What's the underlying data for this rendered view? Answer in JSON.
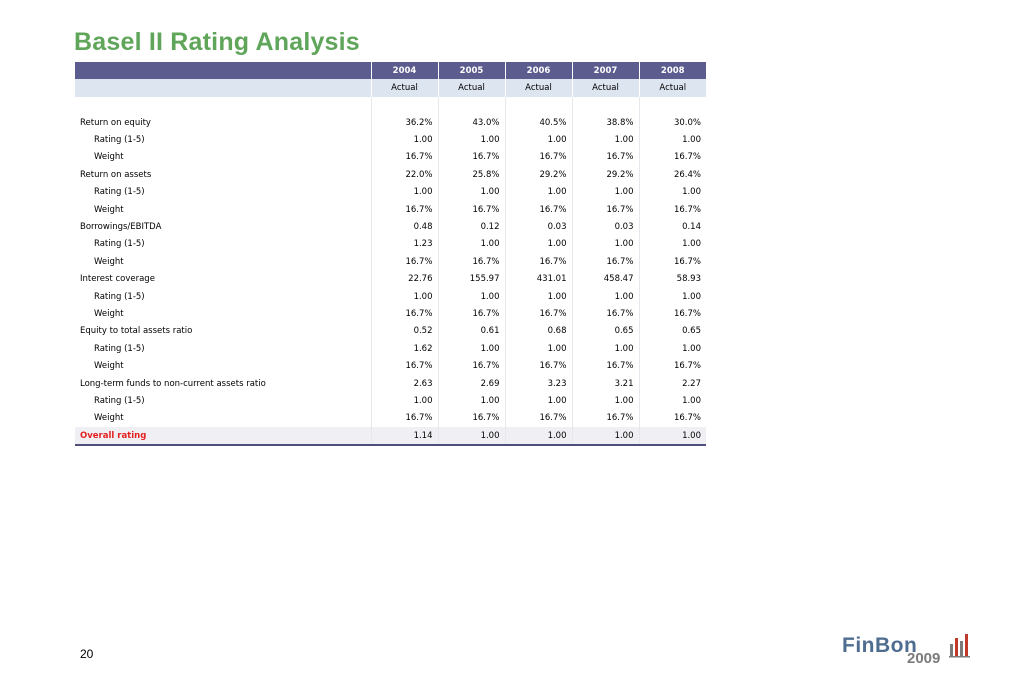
{
  "title": "Basel II Rating Analysis",
  "page_number": "20",
  "logo": {
    "name": "FinBon",
    "year": "2009",
    "icon": "bar-chart-logo-icon"
  },
  "colors": {
    "title": "#5fa55a",
    "header": "#5c5c8e",
    "subheader": "#dde5f0",
    "overall_label": "#e52020"
  },
  "table": {
    "years": [
      "2004",
      "2005",
      "2006",
      "2007",
      "2008"
    ],
    "status": [
      "Actual",
      "Actual",
      "Actual",
      "Actual",
      "Actual"
    ],
    "rows": [
      {
        "label": "Return on equity",
        "level": 0,
        "values": [
          "36.2%",
          "43.0%",
          "40.5%",
          "38.8%",
          "30.0%"
        ]
      },
      {
        "label": "Rating (1-5)",
        "level": 1,
        "values": [
          "1.00",
          "1.00",
          "1.00",
          "1.00",
          "1.00"
        ]
      },
      {
        "label": "Weight",
        "level": 1,
        "values": [
          "16.7%",
          "16.7%",
          "16.7%",
          "16.7%",
          "16.7%"
        ]
      },
      {
        "label": "Return on assets",
        "level": 0,
        "values": [
          "22.0%",
          "25.8%",
          "29.2%",
          "29.2%",
          "26.4%"
        ]
      },
      {
        "label": "Rating (1-5)",
        "level": 1,
        "values": [
          "1.00",
          "1.00",
          "1.00",
          "1.00",
          "1.00"
        ]
      },
      {
        "label": "Weight",
        "level": 1,
        "values": [
          "16.7%",
          "16.7%",
          "16.7%",
          "16.7%",
          "16.7%"
        ]
      },
      {
        "label": "Borrowings/EBITDA",
        "level": 0,
        "values": [
          "0.48",
          "0.12",
          "0.03",
          "0.03",
          "0.14"
        ]
      },
      {
        "label": "Rating (1-5)",
        "level": 1,
        "values": [
          "1.23",
          "1.00",
          "1.00",
          "1.00",
          "1.00"
        ]
      },
      {
        "label": "Weight",
        "level": 1,
        "values": [
          "16.7%",
          "16.7%",
          "16.7%",
          "16.7%",
          "16.7%"
        ]
      },
      {
        "label": "Interest coverage",
        "level": 0,
        "values": [
          "22.76",
          "155.97",
          "431.01",
          "458.47",
          "58.93"
        ]
      },
      {
        "label": "Rating (1-5)",
        "level": 1,
        "values": [
          "1.00",
          "1.00",
          "1.00",
          "1.00",
          "1.00"
        ]
      },
      {
        "label": "Weight",
        "level": 1,
        "values": [
          "16.7%",
          "16.7%",
          "16.7%",
          "16.7%",
          "16.7%"
        ]
      },
      {
        "label": "Equity to total assets ratio",
        "level": 0,
        "values": [
          "0.52",
          "0.61",
          "0.68",
          "0.65",
          "0.65"
        ]
      },
      {
        "label": "Rating (1-5)",
        "level": 1,
        "values": [
          "1.62",
          "1.00",
          "1.00",
          "1.00",
          "1.00"
        ]
      },
      {
        "label": "Weight",
        "level": 1,
        "values": [
          "16.7%",
          "16.7%",
          "16.7%",
          "16.7%",
          "16.7%"
        ]
      },
      {
        "label": "Long-term funds to non-current assets ratio",
        "level": 0,
        "values": [
          "2.63",
          "2.69",
          "3.23",
          "3.21",
          "2.27"
        ]
      },
      {
        "label": "Rating (1-5)",
        "level": 1,
        "values": [
          "1.00",
          "1.00",
          "1.00",
          "1.00",
          "1.00"
        ]
      },
      {
        "label": "Weight",
        "level": 1,
        "values": [
          "16.7%",
          "16.7%",
          "16.7%",
          "16.7%",
          "16.7%"
        ]
      },
      {
        "label": "Overall rating",
        "level": 0,
        "overall": true,
        "values": [
          "1.14",
          "1.00",
          "1.00",
          "1.00",
          "1.00"
        ]
      }
    ]
  }
}
